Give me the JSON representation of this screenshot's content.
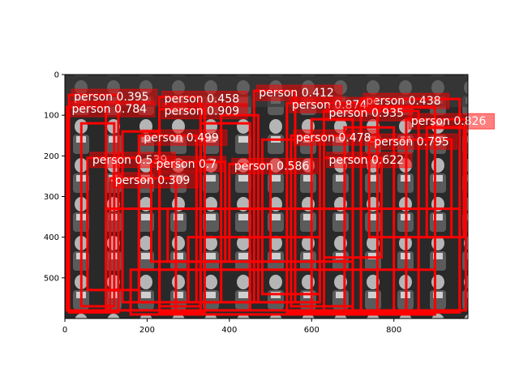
{
  "figure": {
    "image_description": "",
    "colors": {
      "box": "#ff0000",
      "label_bg": "#ff0000",
      "label_text": "#ffffff",
      "photo_dark": "#1e1e1e",
      "photo_light": "#cfcfcf"
    }
  },
  "chart_data": {
    "type": "image-with-detections",
    "xlim": [
      0,
      980
    ],
    "ylim": [
      600,
      0
    ],
    "x_ticks": [
      "0",
      "200",
      "400",
      "600",
      "800"
    ],
    "y_ticks": [
      "0",
      "100",
      "200",
      "300",
      "400",
      "500"
    ],
    "grid": false,
    "detections": [
      {
        "label": "person 0.395",
        "x0": 10,
        "y0": 50,
        "x1": 130,
        "y1": 585
      },
      {
        "label": "person 0.458",
        "x0": 230,
        "y0": 55,
        "x1": 330,
        "y1": 570
      },
      {
        "label": "person 0.412",
        "x0": 460,
        "y0": 40,
        "x1": 560,
        "y1": 560
      },
      {
        "label": "person 0.438",
        "x0": 720,
        "y0": 60,
        "x1": 960,
        "y1": 585
      },
      {
        "label": "person 0.784",
        "x0": 5,
        "y0": 80,
        "x1": 100,
        "y1": 580
      },
      {
        "label": "person 0.909",
        "x0": 230,
        "y0": 85,
        "x1": 340,
        "y1": 585
      },
      {
        "label": "person 0.874",
        "x0": 540,
        "y0": 70,
        "x1": 720,
        "y1": 585
      },
      {
        "label": "person 0.935",
        "x0": 630,
        "y0": 90,
        "x1": 860,
        "y1": 590
      },
      {
        "label": "person 0.826",
        "x0": 830,
        "y0": 110,
        "x1": 975,
        "y1": 580
      },
      {
        "label": "person 0.499",
        "x0": 180,
        "y0": 150,
        "x1": 320,
        "y1": 560
      },
      {
        "label": "person 0.478",
        "x0": 550,
        "y0": 150,
        "x1": 700,
        "y1": 570
      },
      {
        "label": "person 0.795",
        "x0": 740,
        "y0": 160,
        "x1": 940,
        "y1": 400
      },
      {
        "label": "person 0.539",
        "x0": 55,
        "y0": 205,
        "x1": 180,
        "y1": 530
      },
      {
        "label": "person 0.7",
        "x0": 210,
        "y0": 215,
        "x1": 390,
        "y1": 460
      },
      {
        "label": "person 0.586",
        "x0": 400,
        "y0": 220,
        "x1": 500,
        "y1": 460
      },
      {
        "label": "person 0.622",
        "x0": 630,
        "y0": 205,
        "x1": 770,
        "y1": 450
      },
      {
        "label": "person 0.309",
        "x0": 110,
        "y0": 255,
        "x1": 270,
        "y1": 580
      },
      {
        "label": "",
        "x0": 40,
        "y0": 120,
        "x1": 120,
        "y1": 570
      },
      {
        "label": "",
        "x0": 140,
        "y0": 140,
        "x1": 230,
        "y1": 560
      },
      {
        "label": "",
        "x0": 330,
        "y0": 120,
        "x1": 450,
        "y1": 580
      },
      {
        "label": "",
        "x0": 380,
        "y0": 100,
        "x1": 470,
        "y1": 560
      },
      {
        "label": "",
        "x0": 480,
        "y0": 160,
        "x1": 620,
        "y1": 540
      },
      {
        "label": "",
        "x0": 600,
        "y0": 110,
        "x1": 700,
        "y1": 585
      },
      {
        "label": "",
        "x0": 680,
        "y0": 130,
        "x1": 800,
        "y1": 580
      },
      {
        "label": "",
        "x0": 760,
        "y0": 80,
        "x1": 900,
        "y1": 590
      },
      {
        "label": "",
        "x0": 880,
        "y0": 130,
        "x1": 970,
        "y1": 400
      },
      {
        "label": "",
        "x0": 250,
        "y0": 330,
        "x1": 700,
        "y1": 460
      },
      {
        "label": "",
        "x0": 100,
        "y0": 330,
        "x1": 960,
        "y1": 580
      },
      {
        "label": "",
        "x0": 300,
        "y0": 400,
        "x1": 620,
        "y1": 560
      },
      {
        "label": "",
        "x0": 160,
        "y0": 480,
        "x1": 900,
        "y1": 590
      }
    ]
  }
}
